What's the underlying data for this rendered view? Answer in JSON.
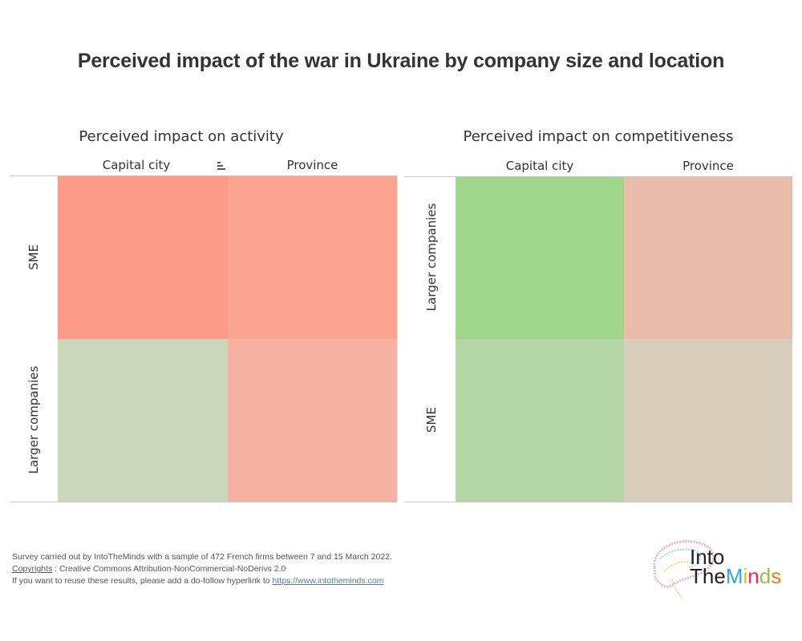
{
  "title": "Perceived impact of the war in Ukraine by company size and location",
  "chart_data": [
    {
      "type": "heatmap",
      "title": "Perceived impact on activity",
      "columns": [
        "Capital city",
        "Province"
      ],
      "rows": [
        "SME",
        "Larger companies"
      ],
      "cells": [
        {
          "row": "SME",
          "column": "Capital city",
          "color": "#fb9b88"
        },
        {
          "row": "SME",
          "column": "Province",
          "color": "#fba590"
        },
        {
          "row": "Larger companies",
          "column": "Capital city",
          "color": "#cad7bd"
        },
        {
          "row": "Larger companies",
          "column": "Province",
          "color": "#f7b1a2"
        }
      ],
      "sort_icon": "sort-descending-icon",
      "legend": "none"
    },
    {
      "type": "heatmap",
      "title": "Perceived impact on competitiveness",
      "columns": [
        "Capital city",
        "Province"
      ],
      "rows": [
        "Larger companies",
        "SME"
      ],
      "cells": [
        {
          "row": "Larger companies",
          "column": "Capital city",
          "color": "#a0d68c"
        },
        {
          "row": "Larger companies",
          "column": "Province",
          "color": "#ebbcaa"
        },
        {
          "row": "SME",
          "column": "Capital city",
          "color": "#b4d5a5"
        },
        {
          "row": "SME",
          "column": "Province",
          "color": "#d7cdba"
        }
      ],
      "legend": "none"
    }
  ],
  "footer": {
    "line1": "Survey carried out by  IntoTheMinds with a sample of 472 French firms between 7 and 15 March 2022.",
    "copyrights_link": "Copyrights",
    "line2_rest": " : Creative Commons Attribution-NonCommercial-NoDerivs 2.0",
    "line3_text": "If you want to reuse these results, please add a do-follow hyperlink to ",
    "line3_link": "https://www.intotheminds.com"
  },
  "logo": {
    "line1": "Into",
    "line2_a": "The",
    "line2_b": [
      "M",
      "i",
      "n",
      "d",
      "s"
    ],
    "letter_colors": [
      "#2fa8e0",
      "#f7b51c",
      "#e8267c",
      "#8cc63f",
      "#f47b20"
    ]
  }
}
